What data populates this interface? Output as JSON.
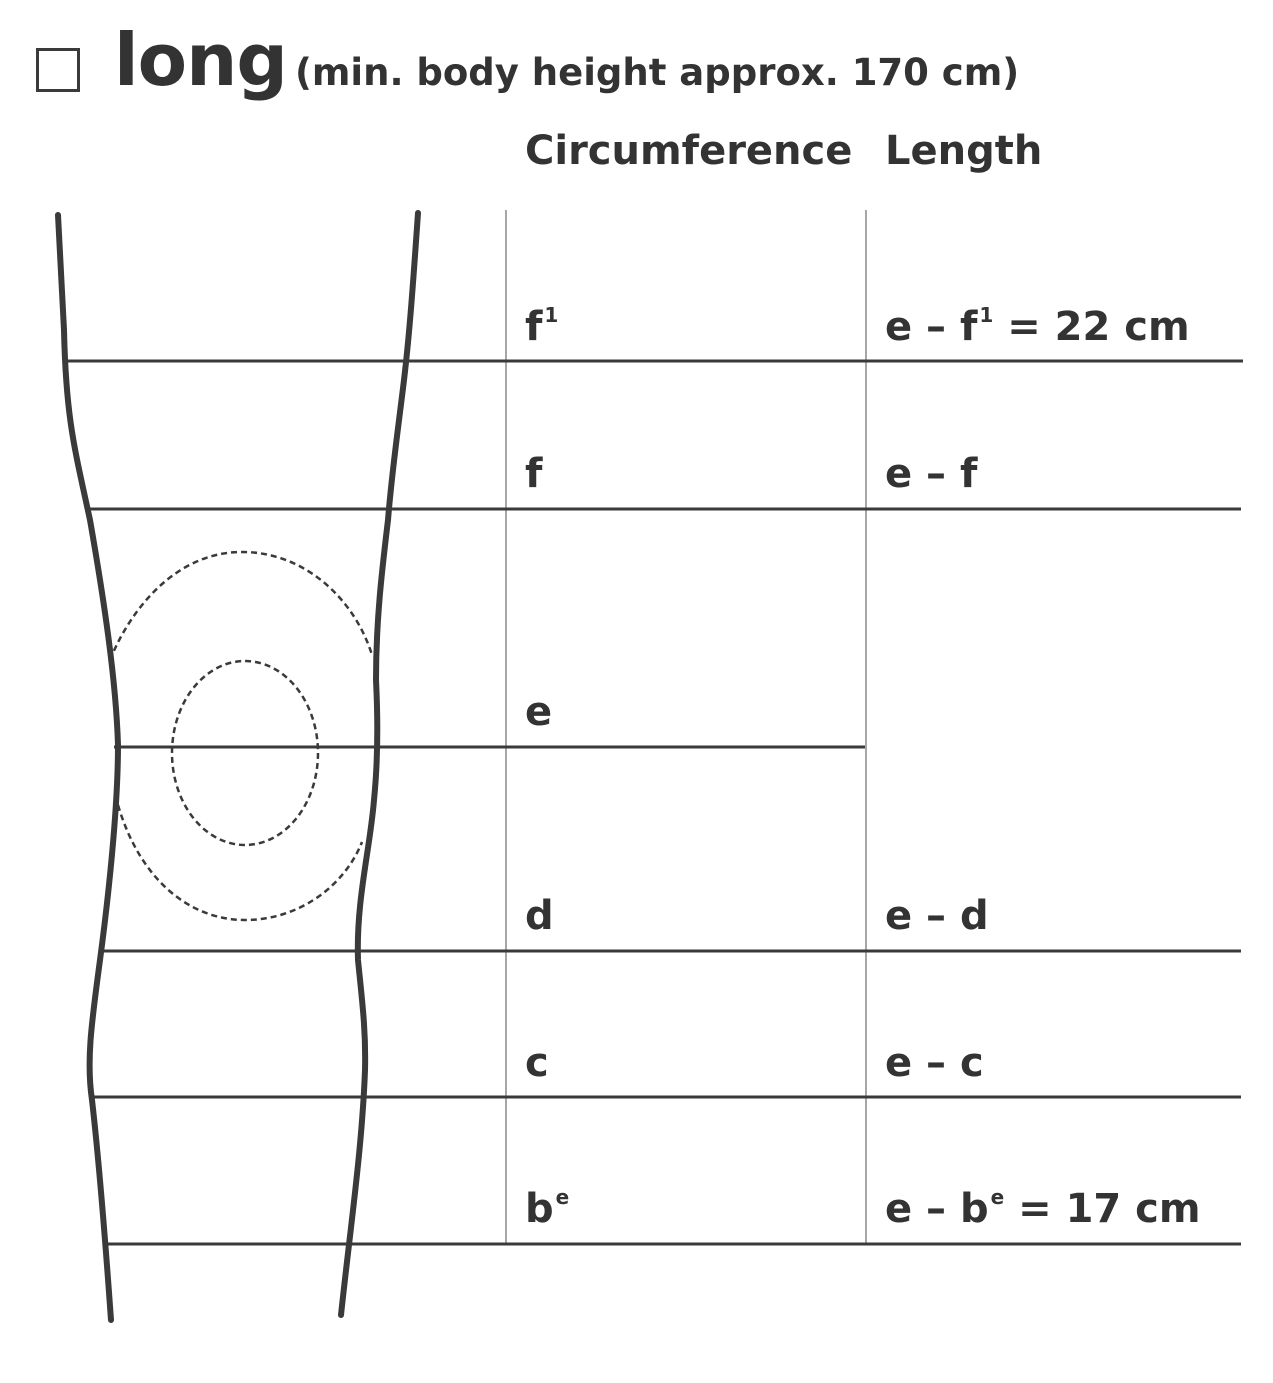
{
  "header": {
    "title": "long",
    "subtitle": "(min. body height approx. 170 cm)"
  },
  "columns": {
    "circumference": "Circumference",
    "length": "Length"
  },
  "rows": [
    {
      "circ": "f",
      "circ_sup": "1",
      "len_pre": "e – f",
      "len_sup": "1",
      "len_post": " = 22 cm"
    },
    {
      "circ": "f",
      "circ_sup": "",
      "len_pre": "e – f",
      "len_sup": "",
      "len_post": ""
    },
    {
      "circ": "e",
      "circ_sup": "",
      "len_pre": "",
      "len_sup": "",
      "len_post": ""
    },
    {
      "circ": "d",
      "circ_sup": "",
      "len_pre": "e – d",
      "len_sup": "",
      "len_post": ""
    },
    {
      "circ": "c",
      "circ_sup": "",
      "len_pre": "e – c",
      "len_sup": "",
      "len_post": ""
    },
    {
      "circ": "b",
      "circ_sup": "e",
      "len_pre": "e – b",
      "len_sup": "e",
      "len_post": " = 17 cm"
    }
  ],
  "colors": {
    "line": "#3a3a3a",
    "thin_line": "#8a8a8a",
    "text": "#333333"
  }
}
